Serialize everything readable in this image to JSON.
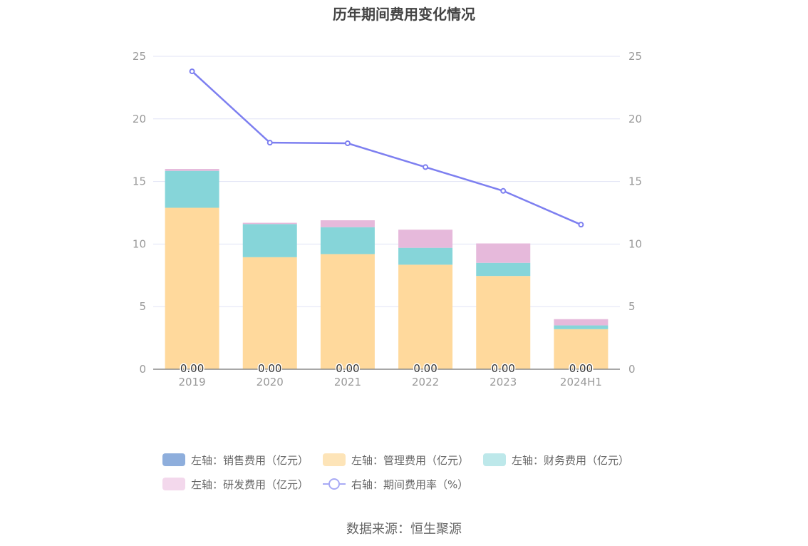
{
  "title": "历年期间费用变化情况",
  "source": "数据来源：恒生聚源",
  "colors": {
    "sales": "#8eaedc",
    "admin": "#ffd99c",
    "finance": "#86d5d9",
    "rd": "#e6b9db",
    "rate": "#7d7ff0",
    "grid": "#e0e3f5",
    "axis": "#999999",
    "tick": "#999999"
  },
  "legend": [
    {
      "label": "左轴：销售费用（亿元）",
      "color": "#8eaedc",
      "type": "bar"
    },
    {
      "label": "左轴：管理费用（亿元）",
      "color": "#fde4b8",
      "type": "bar"
    },
    {
      "label": "左轴：财务费用（亿元）",
      "color": "#bde8ea",
      "type": "bar"
    },
    {
      "label": "左轴：研发费用（亿元）",
      "color": "#f3d8ec",
      "type": "bar"
    },
    {
      "label": "右轴：期间费用率（%）",
      "color": "#a8aaf5",
      "type": "line"
    }
  ],
  "chart_data": {
    "type": "bar",
    "categories": [
      "2019",
      "2020",
      "2021",
      "2022",
      "2023",
      "2024H1"
    ],
    "left_axis": {
      "ylim": [
        0,
        25
      ],
      "ticks": [
        0,
        5,
        10,
        15,
        20,
        25
      ]
    },
    "right_axis": {
      "ylim": [
        0,
        25
      ],
      "ticks": [
        0,
        5,
        10,
        15,
        20,
        25
      ]
    },
    "series": [
      {
        "name": "左轴：销售费用（亿元）",
        "key": "sales",
        "axis": "left",
        "kind": "bar",
        "values": [
          0,
          0,
          0,
          0,
          0,
          0
        ],
        "data_labels": [
          "0.00",
          "0.00",
          "0.00",
          "0.00",
          "0.00",
          "0.00"
        ]
      },
      {
        "name": "左轴：管理费用（亿元）",
        "key": "admin",
        "axis": "left",
        "kind": "bar",
        "values": [
          12.9,
          8.95,
          9.2,
          8.35,
          7.45,
          3.2
        ]
      },
      {
        "name": "左轴：财务费用（亿元）",
        "key": "finance",
        "axis": "left",
        "kind": "bar",
        "values": [
          2.95,
          2.65,
          2.15,
          1.35,
          1.05,
          0.3
        ]
      },
      {
        "name": "左轴：研发费用（亿元）",
        "key": "rd",
        "axis": "left",
        "kind": "bar",
        "values": [
          0.15,
          0.1,
          0.55,
          1.45,
          1.55,
          0.5
        ]
      },
      {
        "name": "右轴：期间费用率（%）",
        "key": "rate",
        "axis": "right",
        "kind": "line",
        "values": [
          23.8,
          18.1,
          18.05,
          16.15,
          14.25,
          11.55
        ]
      }
    ]
  }
}
